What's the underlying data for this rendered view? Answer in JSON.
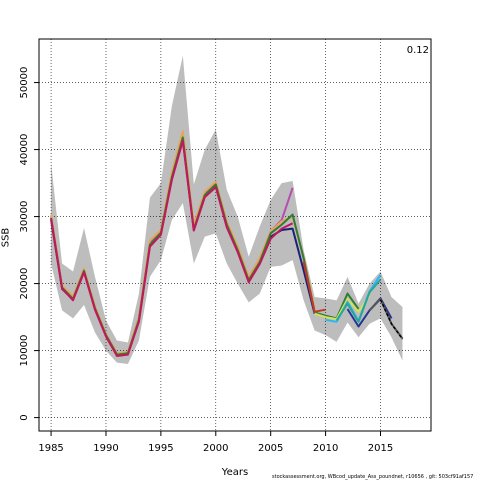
{
  "chart_data": {
    "type": "line",
    "title": "",
    "xlabel": "Years",
    "ylabel": "SSB",
    "corner_label": "0.12",
    "credit": "stockassessment.org, WBcod_update_Ass_poundnet, r10656 , git: 503cf91af157",
    "xlim": [
      1983.9,
      2019.6
    ],
    "ylim": [
      -2000,
      56500
    ],
    "x_ticks": [
      1985,
      1990,
      1995,
      2000,
      2005,
      2010,
      2015
    ],
    "y_ticks": [
      0,
      10000,
      20000,
      30000,
      40000,
      50000
    ],
    "grid": true,
    "grid_style": "dotted",
    "confidence_band": {
      "color": "#bdbdbd",
      "x": [
        1985,
        1986,
        1987,
        1988,
        1989,
        1990,
        1991,
        1992,
        1993,
        1994,
        1995,
        1996,
        1997,
        1998,
        1999,
        2000,
        2001,
        2002,
        2003,
        2004,
        2005,
        2006,
        2007,
        2008,
        2009,
        2010,
        2011,
        2012,
        2013,
        2014,
        2015,
        2016,
        2017
      ],
      "lower": [
        23000,
        16000,
        14800,
        16800,
        12700,
        10000,
        8200,
        8000,
        11500,
        21000,
        23500,
        29500,
        32000,
        23000,
        27000,
        27500,
        23000,
        20000,
        17200,
        18500,
        22500,
        22700,
        23500,
        17500,
        13000,
        12300,
        11300,
        14200,
        12000,
        14000,
        14800,
        12000,
        8500
      ],
      "upper": [
        38000,
        23000,
        21800,
        28300,
        21000,
        14500,
        11500,
        11200,
        18500,
        32800,
        35000,
        46500,
        54000,
        34800,
        40000,
        43000,
        34000,
        30000,
        24000,
        28500,
        32500,
        35000,
        35300,
        25000,
        18000,
        17800,
        17500,
        21000,
        17000,
        20000,
        21800,
        18000,
        16500
      ]
    },
    "series": [
      {
        "color": "#1f1f7a",
        "x": [
          1985,
          1986,
          1987,
          1988,
          1989,
          1990,
          1991,
          1992,
          1993,
          1994,
          1995,
          1996,
          1997,
          1998,
          1999,
          2000,
          2001,
          2002,
          2003,
          2004,
          2005,
          2006,
          2007,
          2008,
          2009
        ],
        "values": [
          29500,
          19200,
          17600,
          21800,
          16200,
          12200,
          9300,
          9600,
          14500,
          25700,
          27500,
          35700,
          41500,
          28000,
          33000,
          34600,
          28500,
          24800,
          20300,
          23000,
          27000,
          28000,
          28200,
          22000,
          15500
        ]
      },
      {
        "color": "#b64db3",
        "x": [
          1985,
          1986,
          1987,
          1988,
          1989,
          1990,
          1991,
          1992,
          1993,
          1994,
          1995,
          1996,
          1997,
          1998,
          1999,
          2000,
          2001,
          2002,
          2003,
          2004,
          2005,
          2006,
          2007
        ],
        "values": [
          30000,
          19500,
          17900,
          22000,
          16500,
          12400,
          9500,
          9700,
          14800,
          26000,
          27800,
          36200,
          42000,
          28400,
          33500,
          35000,
          29000,
          25200,
          20700,
          23500,
          27800,
          29500,
          34300
        ]
      },
      {
        "color": "#e8a35c",
        "x": [
          1985,
          1986,
          1987,
          1988,
          1989,
          1990,
          1991,
          1992,
          1993,
          1994,
          1995,
          1996,
          1997,
          1998,
          1999,
          2000,
          2001,
          2002,
          2003,
          2004,
          2005,
          2006,
          2007,
          2008,
          2009
        ],
        "values": [
          30300,
          19700,
          18100,
          22200,
          16600,
          12500,
          9600,
          9800,
          15000,
          26400,
          28000,
          36600,
          42700,
          28800,
          33700,
          35200,
          29200,
          25500,
          21000,
          23800,
          27800,
          29300,
          30000,
          24000,
          16200
        ]
      },
      {
        "color": "#2e7d32",
        "x": [
          1985,
          1986,
          1987,
          1988,
          1989,
          1990,
          1991,
          1992,
          1993,
          1994,
          1995,
          1996,
          1997,
          1998,
          1999,
          2000,
          2001,
          2002,
          2003,
          2004,
          2005,
          2006,
          2007,
          2008,
          2009,
          2010,
          2011,
          2012,
          2013
        ],
        "values": [
          29800,
          19400,
          17700,
          21900,
          16300,
          12300,
          9400,
          9600,
          14600,
          25800,
          27600,
          35900,
          41800,
          28100,
          33200,
          34800,
          28800,
          25000,
          20500,
          23200,
          27500,
          28800,
          30300,
          23800,
          15700,
          15200,
          14800,
          18500,
          16200
        ]
      },
      {
        "color": "#c0392b",
        "x": [
          2008,
          2009,
          2010
        ],
        "values": [
          23200,
          15800,
          16100
        ]
      },
      {
        "color": "#d4e157",
        "x": [
          2009,
          2010,
          2011,
          2012,
          2013,
          2014
        ],
        "values": [
          15500,
          15000,
          14700,
          17700,
          15800,
          18200
        ]
      },
      {
        "color": "#29b6f6",
        "x": [
          2010,
          2011,
          2012,
          2013,
          2014,
          2015
        ],
        "values": [
          14600,
          14300,
          17300,
          14400,
          18800,
          21300
        ]
      },
      {
        "color": "#26a69a",
        "x": [
          2011,
          2012,
          2013,
          2014,
          2015
        ],
        "values": [
          14500,
          17000,
          14300,
          18700,
          20600
        ]
      },
      {
        "color": "#283593",
        "x": [
          2012,
          2013,
          2014,
          2015,
          2016
        ],
        "values": [
          16200,
          13600,
          16000,
          17800,
          14800
        ]
      },
      {
        "color": "#555555",
        "x": [
          2014,
          2015,
          2016,
          2017
        ],
        "values": [
          16000,
          17700,
          14000,
          11800
        ]
      },
      {
        "color": "#000000",
        "dashed": true,
        "x": [
          2015,
          2016,
          2017
        ],
        "values": [
          17600,
          14000,
          11700
        ]
      },
      {
        "color": "#c2185b",
        "x": [
          1985,
          1986,
          1987,
          1988,
          1989,
          1990,
          1991,
          1992,
          1993,
          1994,
          1995,
          1996,
          1997,
          1998,
          1999,
          2000,
          2001,
          2002,
          2003,
          2004,
          2005,
          2006,
          2007
        ],
        "values": [
          29700,
          19300,
          17500,
          21700,
          16100,
          12100,
          9200,
          9400,
          14300,
          25500,
          27300,
          35500,
          41300,
          27900,
          32900,
          34400,
          28400,
          24700,
          20200,
          22900,
          26700,
          28200,
          29000
        ]
      }
    ]
  }
}
